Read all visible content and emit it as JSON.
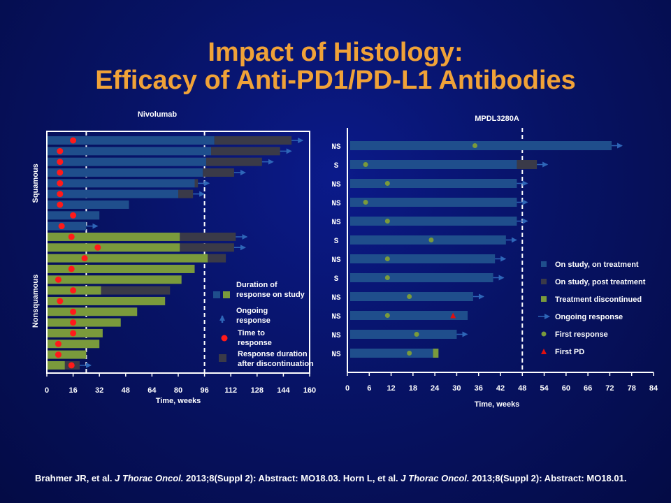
{
  "title_line1": "Impact of Histology:",
  "title_line2": "Efficacy of Anti-PD1/PD-L1 Antibodies",
  "citation": {
    "p1": "Brahmer JR, et al. ",
    "j1": "J Thorac Oncol.",
    "p2": " 2013;8(Suppl 2): Abstract: MO18.03. Horn L, et al. ",
    "j2": "J Thorac Oncol.",
    "p3": " 2013;8(Suppl 2): Abstract: MO18.01."
  },
  "colors": {
    "on_treatment": "#1f4e8c",
    "post_treatment": "#3a3a48",
    "discontinued": "#7a9a3c",
    "arrow": "#2e66b8",
    "response_dot_left": "#ff1a1a",
    "response_dot_right": "#7a9a3c",
    "pd": "#e01010"
  },
  "chart_data": [
    {
      "type": "swimmer",
      "title": "Nivolumab",
      "xlabel": "Time, weeks",
      "xlim": [
        0,
        160
      ],
      "xticks": [
        0,
        16,
        32,
        48,
        64,
        80,
        96,
        112,
        128,
        144,
        160
      ],
      "reference_lines": [
        24,
        96
      ],
      "groups": [
        {
          "name": "Squamous",
          "rows": [
            0,
            8
          ]
        },
        {
          "name": "Nonsquamous",
          "rows": [
            9,
            21
          ]
        }
      ],
      "rows": [
        {
          "main_color": "blue",
          "main_end": 102,
          "post_end": 149,
          "arrow": true,
          "response": 16
        },
        {
          "main_color": "blue",
          "main_end": 100,
          "post_end": 142,
          "arrow": true,
          "response": 8
        },
        {
          "main_color": "blue",
          "main_end": 97,
          "post_end": 131,
          "arrow": true,
          "response": 8
        },
        {
          "main_color": "blue",
          "main_end": 95,
          "post_end": 114,
          "arrow": true,
          "response": 8
        },
        {
          "main_color": "blue",
          "main_end": 90,
          "post_end": 92,
          "arrow": true,
          "response": 8
        },
        {
          "main_color": "blue",
          "main_end": 80,
          "post_end": 89,
          "arrow": true,
          "response": 8
        },
        {
          "main_color": "blue",
          "main_end": 50,
          "post_end": null,
          "arrow": false,
          "response": 8
        },
        {
          "main_color": "blue",
          "main_end": 32,
          "post_end": null,
          "arrow": false,
          "response": 16
        },
        {
          "main_color": "blue",
          "main_end": 24,
          "post_end": null,
          "arrow": true,
          "response": 9
        },
        {
          "main_color": "green",
          "main_end": 81,
          "post_end": 115,
          "arrow": true,
          "response": 15
        },
        {
          "main_color": "green",
          "main_end": 81,
          "post_end": 114,
          "arrow": true,
          "response": 31
        },
        {
          "main_color": "green",
          "main_end": 98,
          "post_end": 109,
          "arrow": false,
          "response": 23
        },
        {
          "main_color": "green",
          "main_end": 90,
          "post_end": null,
          "arrow": false,
          "response": 15
        },
        {
          "main_color": "green",
          "main_end": 82,
          "post_end": null,
          "arrow": false,
          "response": 7
        },
        {
          "main_color": "green",
          "main_end": 33,
          "post_end": 75,
          "arrow": false,
          "response": 16
        },
        {
          "main_color": "green",
          "main_end": 72,
          "post_end": null,
          "arrow": false,
          "response": 8
        },
        {
          "main_color": "green",
          "main_end": 55,
          "post_end": null,
          "arrow": false,
          "response": 16
        },
        {
          "main_color": "green",
          "main_end": 45,
          "post_end": null,
          "arrow": false,
          "response": 16
        },
        {
          "main_color": "green",
          "main_end": 34,
          "post_end": null,
          "arrow": false,
          "response": 16
        },
        {
          "main_color": "green",
          "main_end": 32,
          "post_end": null,
          "arrow": false,
          "response": 7
        },
        {
          "main_color": "green",
          "main_end": 24,
          "post_end": null,
          "arrow": false,
          "response": 7
        },
        {
          "main_color": "green",
          "main_end": 11,
          "post_end": 20,
          "arrow": true,
          "response": 15
        }
      ],
      "legend": [
        {
          "key": "duration",
          "label1": "Duration of",
          "label2": "response  on study"
        },
        {
          "key": "ongoing",
          "label1": "Ongoing",
          "label2": "response"
        },
        {
          "key": "ttr",
          "label1": "Time to",
          "label2": "response"
        },
        {
          "key": "after",
          "label1": "Response duration",
          "label2": "after discontinuation"
        }
      ]
    },
    {
      "type": "swimmer",
      "title": "MPDL3280A",
      "xlabel": "Time, weeks",
      "xlim": [
        0,
        84
      ],
      "xticks": [
        0,
        6,
        12,
        18,
        24,
        30,
        36,
        42,
        48,
        54,
        60,
        66,
        72,
        78,
        84
      ],
      "reference_lines": [
        48
      ],
      "rows": [
        {
          "label": "NS",
          "blue_end": 72.5,
          "post_end": null,
          "green_end": null,
          "arrow": true,
          "response": 35,
          "pd": null
        },
        {
          "label": "S",
          "blue_end": 46.5,
          "post_end": 52,
          "green_end": null,
          "arrow": true,
          "response": 5,
          "pd": null
        },
        {
          "label": "NS",
          "blue_end": 46.5,
          "post_end": null,
          "green_end": null,
          "arrow": true,
          "response": 11,
          "pd": null
        },
        {
          "label": "NS",
          "blue_end": 46.5,
          "post_end": null,
          "green_end": null,
          "arrow": true,
          "response": 5,
          "pd": null
        },
        {
          "label": "NS",
          "blue_end": 46.5,
          "post_end": null,
          "green_end": null,
          "arrow": true,
          "response": 11,
          "pd": null
        },
        {
          "label": "S",
          "blue_end": 43.5,
          "post_end": null,
          "green_end": null,
          "arrow": true,
          "response": 23,
          "pd": null
        },
        {
          "label": "NS",
          "blue_end": 40.5,
          "post_end": null,
          "green_end": null,
          "arrow": true,
          "response": 11,
          "pd": null
        },
        {
          "label": "S",
          "blue_end": 40,
          "post_end": null,
          "green_end": null,
          "arrow": true,
          "response": 11,
          "pd": null
        },
        {
          "label": "NS",
          "blue_end": 34.5,
          "post_end": null,
          "green_end": null,
          "arrow": true,
          "response": 17,
          "pd": null
        },
        {
          "label": "NS",
          "blue_end": 33,
          "post_end": null,
          "green_end": null,
          "arrow": false,
          "response": 11,
          "pd": 29
        },
        {
          "label": "NS",
          "blue_end": 30,
          "post_end": null,
          "green_end": null,
          "arrow": true,
          "response": 19,
          "pd": null
        },
        {
          "label": "NS",
          "blue_end": 23.5,
          "post_end": null,
          "green_end": 25,
          "arrow": false,
          "response": 17,
          "pd": null
        }
      ],
      "legend": [
        {
          "key": "on",
          "label": "On study,  on treatment"
        },
        {
          "key": "post",
          "label": "On study,  post treatment"
        },
        {
          "key": "disc",
          "label": "Treatment discontinued"
        },
        {
          "key": "ongoing",
          "label": "Ongoing response"
        },
        {
          "key": "first",
          "label": "First response"
        },
        {
          "key": "pd",
          "label": "First PD"
        }
      ]
    }
  ]
}
